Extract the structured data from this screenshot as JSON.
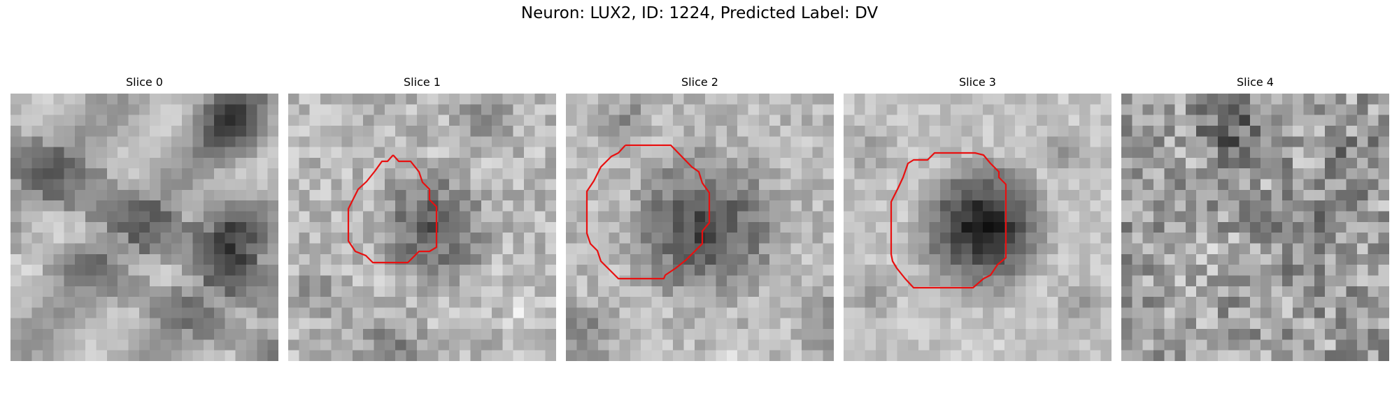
{
  "figure": {
    "title": "Neuron: LUX2, ID: 1224, Predicted Label: DV"
  },
  "panels": [
    {
      "title": "Slice 0",
      "has_contour": false
    },
    {
      "title": "Slice 1",
      "has_contour": true
    },
    {
      "title": "Slice 2",
      "has_contour": true
    },
    {
      "title": "Slice 3",
      "has_contour": true
    },
    {
      "title": "Slice 4",
      "has_contour": false
    }
  ],
  "colors": {
    "contour": "#e81010",
    "background": "#ffffff"
  }
}
